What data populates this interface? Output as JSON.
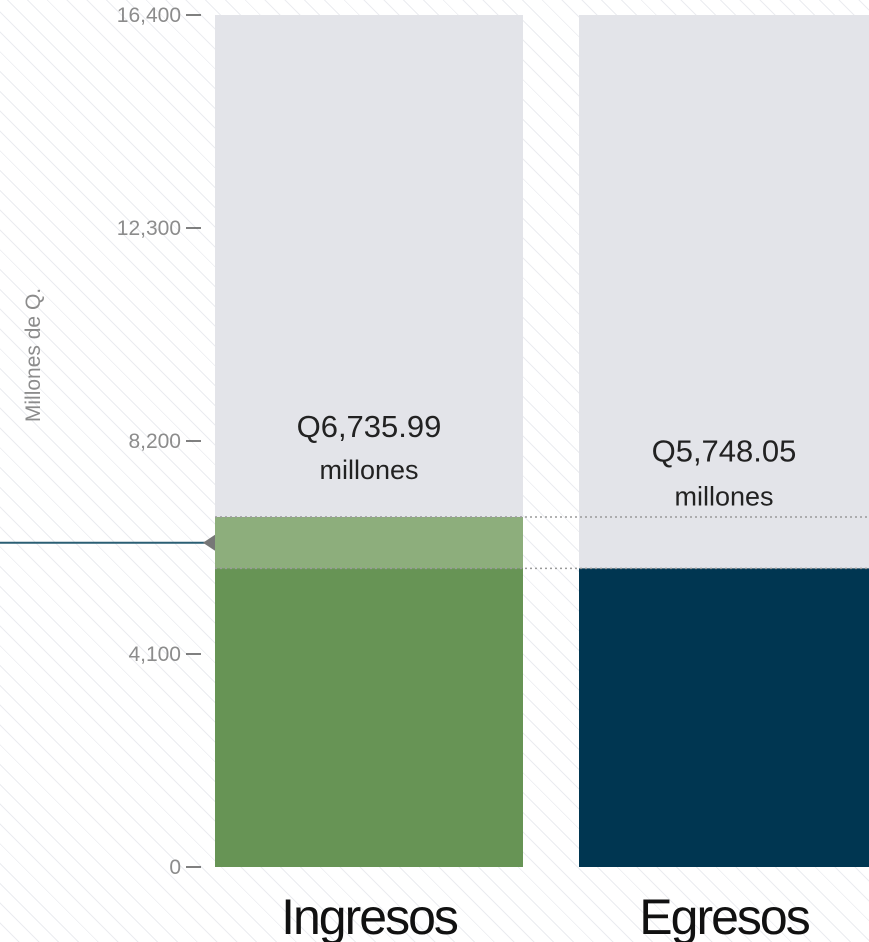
{
  "chart_data": {
    "type": "bar",
    "title": "",
    "ylabel": "Millones de Q.",
    "ylim": [
      0,
      16400
    ],
    "yticks": [
      0,
      4100,
      8200,
      12300,
      16400
    ],
    "ytick_labels": [
      "0",
      "4,100",
      "8,200",
      "12,300",
      "16,400"
    ],
    "categories": [
      "Ingresos",
      "Egresos"
    ],
    "values": [
      6735.99,
      5748.05
    ],
    "value_labels": [
      "Q6,735.99",
      "Q5,748.05"
    ],
    "value_unit": "millones",
    "colors": [
      "#679455",
      "#003651"
    ],
    "difference_color": "#8dae7c",
    "background_bar_color": "#e3e4e9",
    "reference_line_color": "#2b5f74",
    "grid": false
  }
}
